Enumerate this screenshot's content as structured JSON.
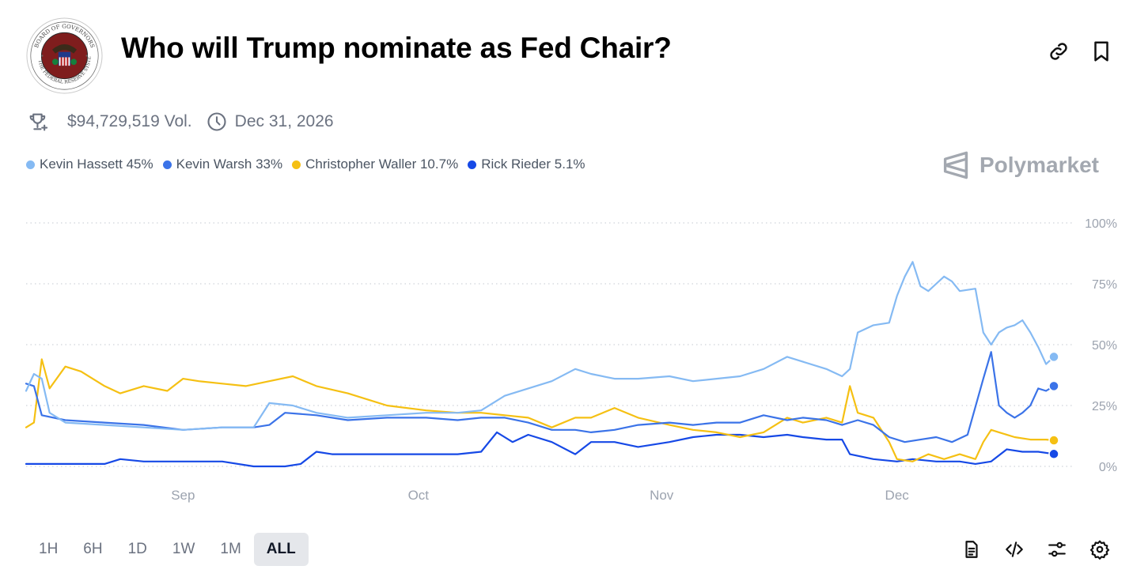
{
  "market": {
    "title": "Who will Trump nominate as Fed Chair?",
    "logo_text": "BOARD OF GOVERNORS OF THE FEDERAL RESERVE SYSTEM",
    "volume": "$94,729,519 Vol.",
    "end_date": "Dec 31, 2026",
    "brand": "Polymarket"
  },
  "legend": [
    {
      "label": "Kevin Hassett 45%",
      "color": "#85baf3"
    },
    {
      "label": "Kevin Warsh 33%",
      "color": "#3b73e8"
    },
    {
      "label": "Christopher Waller 10.7%",
      "color": "#f5c013"
    },
    {
      "label": "Rick Rieder 5.1%",
      "color": "#1649e6"
    }
  ],
  "time_ranges": {
    "items": [
      "1H",
      "6H",
      "1D",
      "1W",
      "1M",
      "ALL"
    ],
    "active": "ALL"
  },
  "icons": {
    "link": "link-icon",
    "bookmark": "bookmark-icon",
    "trophy": "trophy-icon",
    "clock": "clock-icon",
    "document": "document-icon",
    "embed": "code-icon",
    "filters": "sliders-icon",
    "settings": "gear-icon"
  },
  "chart_data": {
    "type": "line",
    "x_range": [
      "2025-08-12",
      "2025-12-21"
    ],
    "x_ticks": [
      {
        "label": "Sep",
        "date": "2025-09-01"
      },
      {
        "label": "Oct",
        "date": "2025-10-01"
      },
      {
        "label": "Nov",
        "date": "2025-11-01"
      },
      {
        "label": "Dec",
        "date": "2025-12-01"
      }
    ],
    "ylim": [
      0,
      100
    ],
    "y_ticks": [
      "0%",
      "25%",
      "50%",
      "75%",
      "100%"
    ],
    "grid": "horizontal dotted",
    "series": [
      {
        "name": "Kevin Hassett",
        "color": "#85baf3",
        "points": [
          [
            "2025-08-12",
            31
          ],
          [
            "2025-08-13",
            38
          ],
          [
            "2025-08-14",
            36
          ],
          [
            "2025-08-15",
            22
          ],
          [
            "2025-08-17",
            18
          ],
          [
            "2025-08-22",
            17
          ],
          [
            "2025-08-27",
            16
          ],
          [
            "2025-09-01",
            15
          ],
          [
            "2025-09-06",
            16
          ],
          [
            "2025-09-10",
            16
          ],
          [
            "2025-09-12",
            26
          ],
          [
            "2025-09-15",
            25
          ],
          [
            "2025-09-18",
            22
          ],
          [
            "2025-09-22",
            20
          ],
          [
            "2025-09-27",
            21
          ],
          [
            "2025-10-02",
            22
          ],
          [
            "2025-10-06",
            22
          ],
          [
            "2025-10-09",
            23
          ],
          [
            "2025-10-12",
            29
          ],
          [
            "2025-10-15",
            32
          ],
          [
            "2025-10-18",
            35
          ],
          [
            "2025-10-21",
            40
          ],
          [
            "2025-10-23",
            38
          ],
          [
            "2025-10-26",
            36
          ],
          [
            "2025-10-29",
            36
          ],
          [
            "2025-11-02",
            37
          ],
          [
            "2025-11-05",
            35
          ],
          [
            "2025-11-08",
            36
          ],
          [
            "2025-11-11",
            37
          ],
          [
            "2025-11-14",
            40
          ],
          [
            "2025-11-17",
            45
          ],
          [
            "2025-11-19",
            43
          ],
          [
            "2025-11-22",
            40
          ],
          [
            "2025-11-24",
            37
          ],
          [
            "2025-11-25",
            40
          ],
          [
            "2025-11-26",
            55
          ],
          [
            "2025-11-28",
            58
          ],
          [
            "2025-11-30",
            59
          ],
          [
            "2025-12-01",
            70
          ],
          [
            "2025-12-02",
            78
          ],
          [
            "2025-12-03",
            84
          ],
          [
            "2025-12-04",
            74
          ],
          [
            "2025-12-05",
            72
          ],
          [
            "2025-12-06",
            75
          ],
          [
            "2025-12-07",
            78
          ],
          [
            "2025-12-08",
            76
          ],
          [
            "2025-12-09",
            72
          ],
          [
            "2025-12-11",
            73
          ],
          [
            "2025-12-12",
            55
          ],
          [
            "2025-12-13",
            50
          ],
          [
            "2025-12-14",
            55
          ],
          [
            "2025-12-15",
            57
          ],
          [
            "2025-12-16",
            58
          ],
          [
            "2025-12-17",
            60
          ],
          [
            "2025-12-18",
            55
          ],
          [
            "2025-12-19",
            49
          ],
          [
            "2025-12-20",
            42
          ],
          [
            "2025-12-21",
            45
          ]
        ]
      },
      {
        "name": "Kevin Warsh",
        "color": "#3b73e8",
        "points": [
          [
            "2025-08-12",
            34
          ],
          [
            "2025-08-13",
            33
          ],
          [
            "2025-08-14",
            21
          ],
          [
            "2025-08-17",
            19
          ],
          [
            "2025-08-22",
            18
          ],
          [
            "2025-08-27",
            17
          ],
          [
            "2025-09-01",
            15
          ],
          [
            "2025-09-06",
            16
          ],
          [
            "2025-09-10",
            16
          ],
          [
            "2025-09-12",
            17
          ],
          [
            "2025-09-14",
            22
          ],
          [
            "2025-09-18",
            21
          ],
          [
            "2025-09-22",
            19
          ],
          [
            "2025-09-27",
            20
          ],
          [
            "2025-10-02",
            20
          ],
          [
            "2025-10-06",
            19
          ],
          [
            "2025-10-09",
            20
          ],
          [
            "2025-10-12",
            20
          ],
          [
            "2025-10-15",
            18
          ],
          [
            "2025-10-18",
            15
          ],
          [
            "2025-10-21",
            15
          ],
          [
            "2025-10-23",
            14
          ],
          [
            "2025-10-26",
            15
          ],
          [
            "2025-10-29",
            17
          ],
          [
            "2025-11-02",
            18
          ],
          [
            "2025-11-05",
            17
          ],
          [
            "2025-11-08",
            18
          ],
          [
            "2025-11-11",
            18
          ],
          [
            "2025-11-14",
            21
          ],
          [
            "2025-11-17",
            19
          ],
          [
            "2025-11-19",
            20
          ],
          [
            "2025-11-22",
            19
          ],
          [
            "2025-11-24",
            17
          ],
          [
            "2025-11-26",
            19
          ],
          [
            "2025-11-28",
            17
          ],
          [
            "2025-11-30",
            12
          ],
          [
            "2025-12-02",
            10
          ],
          [
            "2025-12-04",
            11
          ],
          [
            "2025-12-06",
            12
          ],
          [
            "2025-12-08",
            10
          ],
          [
            "2025-12-10",
            13
          ],
          [
            "2025-12-12",
            36
          ],
          [
            "2025-12-13",
            47
          ],
          [
            "2025-12-14",
            25
          ],
          [
            "2025-12-15",
            22
          ],
          [
            "2025-12-16",
            20
          ],
          [
            "2025-12-17",
            22
          ],
          [
            "2025-12-18",
            25
          ],
          [
            "2025-12-19",
            32
          ],
          [
            "2025-12-20",
            31
          ],
          [
            "2025-12-21",
            33
          ]
        ]
      },
      {
        "name": "Christopher Waller",
        "color": "#f5c013",
        "points": [
          [
            "2025-08-12",
            16
          ],
          [
            "2025-08-13",
            18
          ],
          [
            "2025-08-14",
            44
          ],
          [
            "2025-08-15",
            32
          ],
          [
            "2025-08-17",
            41
          ],
          [
            "2025-08-19",
            39
          ],
          [
            "2025-08-22",
            33
          ],
          [
            "2025-08-24",
            30
          ],
          [
            "2025-08-27",
            33
          ],
          [
            "2025-08-30",
            31
          ],
          [
            "2025-09-01",
            36
          ],
          [
            "2025-09-03",
            35
          ],
          [
            "2025-09-06",
            34
          ],
          [
            "2025-09-09",
            33
          ],
          [
            "2025-09-12",
            35
          ],
          [
            "2025-09-15",
            37
          ],
          [
            "2025-09-18",
            33
          ],
          [
            "2025-09-22",
            30
          ],
          [
            "2025-09-27",
            25
          ],
          [
            "2025-10-02",
            23
          ],
          [
            "2025-10-06",
            22
          ],
          [
            "2025-10-09",
            22
          ],
          [
            "2025-10-12",
            21
          ],
          [
            "2025-10-15",
            20
          ],
          [
            "2025-10-18",
            16
          ],
          [
            "2025-10-21",
            20
          ],
          [
            "2025-10-23",
            20
          ],
          [
            "2025-10-26",
            24
          ],
          [
            "2025-10-29",
            20
          ],
          [
            "2025-11-02",
            17
          ],
          [
            "2025-11-05",
            15
          ],
          [
            "2025-11-08",
            14
          ],
          [
            "2025-11-11",
            12
          ],
          [
            "2025-11-14",
            14
          ],
          [
            "2025-11-17",
            20
          ],
          [
            "2025-11-19",
            18
          ],
          [
            "2025-11-22",
            20
          ],
          [
            "2025-11-24",
            18
          ],
          [
            "2025-11-25",
            33
          ],
          [
            "2025-11-26",
            22
          ],
          [
            "2025-11-28",
            20
          ],
          [
            "2025-11-30",
            10
          ],
          [
            "2025-12-01",
            3
          ],
          [
            "2025-12-03",
            2
          ],
          [
            "2025-12-05",
            5
          ],
          [
            "2025-12-07",
            3
          ],
          [
            "2025-12-09",
            5
          ],
          [
            "2025-12-11",
            3
          ],
          [
            "2025-12-12",
            10
          ],
          [
            "2025-12-13",
            15
          ],
          [
            "2025-12-14",
            14
          ],
          [
            "2025-12-16",
            12
          ],
          [
            "2025-12-18",
            11
          ],
          [
            "2025-12-20",
            11
          ],
          [
            "2025-12-21",
            10.7
          ]
        ]
      },
      {
        "name": "Rick Rieder",
        "color": "#1649e6",
        "points": [
          [
            "2025-08-12",
            1
          ],
          [
            "2025-08-22",
            1
          ],
          [
            "2025-08-24",
            3
          ],
          [
            "2025-08-27",
            2
          ],
          [
            "2025-09-01",
            2
          ],
          [
            "2025-09-06",
            2
          ],
          [
            "2025-09-10",
            0
          ],
          [
            "2025-09-14",
            0
          ],
          [
            "2025-09-16",
            1
          ],
          [
            "2025-09-18",
            6
          ],
          [
            "2025-09-20",
            5
          ],
          [
            "2025-09-27",
            5
          ],
          [
            "2025-10-02",
            5
          ],
          [
            "2025-10-06",
            5
          ],
          [
            "2025-10-09",
            6
          ],
          [
            "2025-10-11",
            14
          ],
          [
            "2025-10-13",
            10
          ],
          [
            "2025-10-15",
            13
          ],
          [
            "2025-10-18",
            10
          ],
          [
            "2025-10-21",
            5
          ],
          [
            "2025-10-23",
            10
          ],
          [
            "2025-10-26",
            10
          ],
          [
            "2025-10-29",
            8
          ],
          [
            "2025-11-02",
            10
          ],
          [
            "2025-11-05",
            12
          ],
          [
            "2025-11-08",
            13
          ],
          [
            "2025-11-11",
            13
          ],
          [
            "2025-11-14",
            12
          ],
          [
            "2025-11-17",
            13
          ],
          [
            "2025-11-19",
            12
          ],
          [
            "2025-11-22",
            11
          ],
          [
            "2025-11-24",
            11
          ],
          [
            "2025-11-25",
            5
          ],
          [
            "2025-11-28",
            3
          ],
          [
            "2025-12-01",
            2
          ],
          [
            "2025-12-03",
            3
          ],
          [
            "2025-12-06",
            2
          ],
          [
            "2025-12-09",
            2
          ],
          [
            "2025-12-11",
            1
          ],
          [
            "2025-12-13",
            2
          ],
          [
            "2025-12-15",
            7
          ],
          [
            "2025-12-17",
            6
          ],
          [
            "2025-12-19",
            6
          ],
          [
            "2025-12-21",
            5.1
          ]
        ]
      }
    ]
  }
}
